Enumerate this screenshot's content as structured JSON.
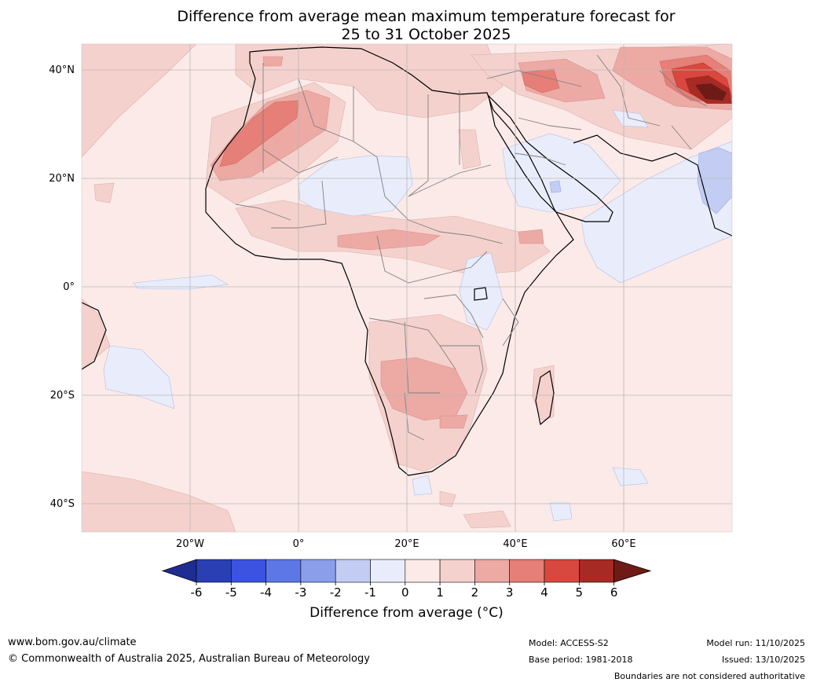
{
  "title": {
    "line1": "Difference from average mean maximum temperature forecast for",
    "line2": "25 to 31 October 2025"
  },
  "map": {
    "lat_labels": [
      "40°N",
      "20°N",
      "0°",
      "20°S",
      "40°S"
    ],
    "lon_labels": [
      "20°W",
      "0°",
      "20°E",
      "40°E",
      "60°E"
    ],
    "lat_values": [
      40,
      20,
      0,
      -20,
      -40
    ],
    "lon_values": [
      -20,
      0,
      20,
      40,
      60
    ]
  },
  "colorbar": {
    "ticks": [
      "-6",
      "-5",
      "-4",
      "-3",
      "-2",
      "-1",
      "0",
      "1",
      "2",
      "3",
      "4",
      "5",
      "6"
    ],
    "colors": [
      "#1f2c94",
      "#2a3fb4",
      "#3b53e0",
      "#5d77e6",
      "#8a9ee9",
      "#c3cdf3",
      "#e9edfb",
      "#fbeae8",
      "#f5d1cd",
      "#eda9a4",
      "#e57f77",
      "#d9483e",
      "#a82a24",
      "#6e1b17"
    ],
    "label": "Difference from average (°C)"
  },
  "footer": {
    "url": "www.bom.gov.au/climate",
    "copyright": "© Commonwealth of Australia 2025, Australian Bureau of Meteorology",
    "model": "Model: ACCESS-S2",
    "base_period": "Base period: 1981-2018",
    "model_run": "Model run: 11/10/2025",
    "issued": "Issued: 13/10/2025",
    "disclaimer": "Boundaries are not considered authoritative"
  }
}
